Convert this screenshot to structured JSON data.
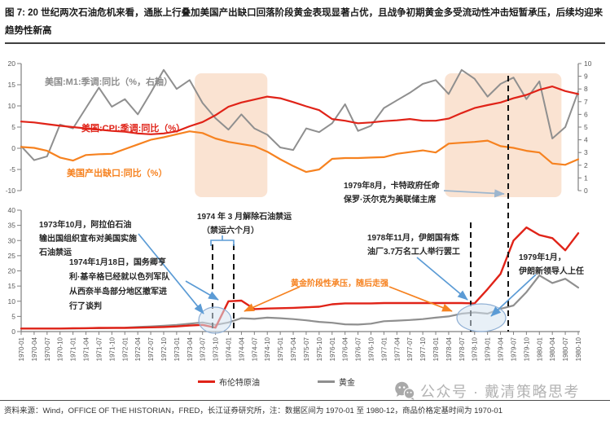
{
  "title": "图 7: 20 世纪两次石油危机来看，通胀上行叠加美国产出缺口回落阶段黄金表现显著占优，且战争初期黄金多受流动性冲击短暂承压，后续均迎来趋势性新高",
  "series_labels": {
    "m1": "美国:M1:季调:同比（%，右轴）",
    "cpi": "美国:CPI:季调:同比（%）",
    "gap": "美国产出缺口:同比（%）"
  },
  "annotations": {
    "embargo_start": {
      "lines": [
        "1973年10月，阿拉伯石油",
        "输出国组织宣布对美国实施",
        "石油禁运"
      ]
    },
    "kissinger": {
      "lines": [
        "1974年1月18日，国务卿亨",
        "利·基辛格已经就以色列军队",
        "从西奈半岛部分地区撤军进",
        "行了谈判"
      ]
    },
    "embargo_end": {
      "lines": [
        "1974 年 3 月解除石油禁运",
        "（禁运六个月）"
      ]
    },
    "gold_pressure": {
      "lines": [
        "黄金阶段性承压，随后走强"
      ]
    },
    "iran_strike": {
      "lines": [
        "1978年11月，伊朗国有炼",
        "油厂3.7万名工人举行罢工"
      ]
    },
    "iran_leader": {
      "lines": [
        "1979年1月，",
        "伊朗新领导人上任"
      ]
    },
    "volcker": {
      "lines": [
        "1979年8月，卡特政府任命",
        "保罗·沃尔克为美联储主席"
      ]
    }
  },
  "legend": [
    {
      "label": "布伦特原油",
      "color": "#e02318"
    },
    {
      "label": "黄金",
      "color": "#8f8f8f"
    }
  ],
  "watermark": {
    "icon": "wechat-icon",
    "text": "公众号 · 戴清策略思考"
  },
  "footer": {
    "text": "资料来源：Wind，OFFICE OF THE HISTORIAN，FRED，长江证券研究所，注：数据区间为 1970-01 至 1980-12，商品价格定基时间为 1970-01"
  },
  "colors": {
    "red": "#e02318",
    "orange": "#f68220",
    "gray": "#8f8f8f",
    "highlight": "#fae3d2",
    "blue_arrow": "#5b9bd5",
    "gray_arrow": "#9db6ce",
    "dashed": "#141414",
    "ellipse_fill": "#d6e4f0",
    "ellipse_stroke": "#8fafd4",
    "axis": "#595959",
    "spine": "#7f7f7f"
  },
  "chart_data": [
    {
      "type": "line",
      "title": "US M1 / CPI / output gap, 1970-1980",
      "x": [
        "1970-01",
        "1970-04",
        "1970-07",
        "1970-10",
        "1971-01",
        "1971-04",
        "1971-07",
        "1971-10",
        "1972-01",
        "1972-04",
        "1972-07",
        "1972-10",
        "1973-01",
        "1973-04",
        "1973-07",
        "1973-10",
        "1974-01",
        "1974-04",
        "1974-07",
        "1974-10",
        "1975-01",
        "1975-04",
        "1975-07",
        "1975-10",
        "1976-01",
        "1976-04",
        "1976-07",
        "1976-10",
        "1977-01",
        "1977-04",
        "1977-07",
        "1977-10",
        "1978-01",
        "1978-04",
        "1978-07",
        "1978-10",
        "1979-01",
        "1979-04",
        "1979-07",
        "1979-10",
        "1980-01",
        "1980-04",
        "1980-07",
        "1980-10"
      ],
      "left_ticks": [
        20,
        15,
        10,
        5,
        0,
        -5,
        -10
      ],
      "right_ticks": [
        10,
        9,
        8,
        7,
        6,
        5,
        4,
        3,
        2,
        1,
        0
      ],
      "left_range": [
        -10,
        20
      ],
      "right_range": [
        0,
        10
      ],
      "grid": false,
      "highlight_regions": [
        [
          13.4,
          19.0
        ],
        [
          32.7,
          41.7
        ]
      ],
      "series": [
        {
          "name": "美国:M1:季调:同比（%，右轴）",
          "axis": "right",
          "color": "#8f8f8f",
          "values": [
            3.5,
            2.4,
            2.7,
            5.2,
            4.9,
            6.5,
            8.1,
            6.6,
            7.2,
            6.0,
            7.7,
            9.5,
            8.0,
            8.7,
            6.9,
            5.7,
            4.8,
            6.0,
            4.9,
            4.4,
            3.4,
            3.2,
            4.9,
            4.6,
            5.3,
            6.8,
            4.7,
            5.1,
            6.5,
            7.1,
            7.7,
            8.4,
            8.7,
            7.6,
            9.5,
            8.8,
            7.4,
            8.4,
            8.9,
            7.2,
            8.6,
            4.1,
            5.0,
            7.8
          ]
        },
        {
          "name": "美国:CPI:季调:同比（%）",
          "axis": "left",
          "color": "#e02318",
          "values": [
            6.3,
            6.1,
            5.7,
            5.3,
            5.0,
            4.7,
            4.4,
            4.1,
            3.9,
            3.5,
            3.3,
            3.5,
            4.0,
            5.2,
            6.2,
            7.8,
            9.8,
            10.8,
            11.5,
            12.2,
            11.8,
            10.9,
            9.9,
            9.0,
            6.9,
            6.5,
            5.9,
            6.1,
            6.4,
            6.6,
            6.9,
            6.5,
            6.5,
            7.0,
            8.3,
            9.5,
            10.2,
            10.8,
            11.8,
            12.6,
            13.8,
            14.6,
            13.5,
            12.8
          ]
        },
        {
          "name": "美国产出缺口:同比（%）",
          "axis": "left",
          "color": "#f68220",
          "values": [
            0.3,
            0.1,
            -0.6,
            -2.2,
            -2.9,
            -1.6,
            -1.4,
            -1.3,
            -0.2,
            0.9,
            2.0,
            2.6,
            3.3,
            4.0,
            3.6,
            2.3,
            1.5,
            1.0,
            0.5,
            -0.8,
            -2.6,
            -4.2,
            -5.6,
            -5.0,
            -2.5,
            -2.3,
            -2.3,
            -2.2,
            -2.1,
            -1.3,
            -0.9,
            -0.5,
            -1.0,
            1.1,
            1.3,
            1.5,
            1.8,
            0.5,
            0.1,
            -0.6,
            -1.0,
            -3.6,
            -3.9,
            -2.6
          ]
        }
      ],
      "events": [
        "1979-08 卡特政府任命保罗·沃尔克为美联储主席"
      ]
    },
    {
      "type": "line",
      "title": "布伦特原油 vs 黄金 (定基指数, 1970-01=1)",
      "x": [
        "1970-01",
        "1970-04",
        "1970-07",
        "1970-10",
        "1971-01",
        "1971-04",
        "1971-07",
        "1971-10",
        "1972-01",
        "1972-04",
        "1972-07",
        "1972-10",
        "1973-01",
        "1973-04",
        "1973-07",
        "1973-10",
        "1974-01",
        "1974-04",
        "1974-07",
        "1974-10",
        "1975-01",
        "1975-04",
        "1975-07",
        "1975-10",
        "1976-01",
        "1976-04",
        "1976-07",
        "1976-10",
        "1977-01",
        "1977-04",
        "1977-07",
        "1977-10",
        "1978-01",
        "1978-04",
        "1978-07",
        "1978-10",
        "1979-01",
        "1979-04",
        "1979-07",
        "1979-10",
        "1980-01",
        "1980-04",
        "1980-07",
        "1980-10"
      ],
      "left_ticks": [
        40,
        35,
        30,
        25,
        20,
        15,
        10,
        5,
        0
      ],
      "left_range": [
        0,
        40
      ],
      "grid": false,
      "series": [
        {
          "name": "布伦特原油",
          "axis": "left",
          "color": "#e02318",
          "values": [
            1.0,
            1.0,
            1.0,
            1.0,
            1.1,
            1.1,
            1.2,
            1.2,
            1.2,
            1.3,
            1.4,
            1.5,
            1.7,
            2.0,
            2.2,
            1.3,
            10.0,
            10.2,
            7.4,
            7.6,
            7.7,
            7.8,
            8.0,
            8.2,
            9.0,
            9.3,
            9.3,
            9.3,
            9.4,
            9.4,
            9.4,
            9.4,
            9.4,
            9.4,
            9.4,
            9.3,
            14.0,
            19.0,
            30.0,
            34.3,
            31.8,
            30.8,
            26.8,
            32.4
          ]
        },
        {
          "name": "黄金",
          "axis": "left",
          "color": "#8f8f8f",
          "values": [
            1.0,
            1.0,
            1.0,
            1.0,
            1.0,
            1.1,
            1.1,
            1.2,
            1.3,
            1.5,
            1.7,
            1.9,
            2.2,
            2.6,
            3.0,
            2.2,
            3.0,
            4.4,
            4.2,
            4.6,
            4.4,
            4.1,
            3.7,
            3.2,
            2.9,
            2.4,
            2.3,
            2.6,
            3.4,
            3.6,
            3.8,
            4.1,
            4.6,
            5.0,
            5.9,
            6.3,
            5.9,
            7.5,
            8.6,
            13.0,
            18.5,
            16.0,
            17.4,
            14.5
          ]
        }
      ],
      "events": [
        "1973-10 石油禁运开始",
        "1974-03 解除石油禁运",
        "1978-11 伊朗炼油厂罢工",
        "1979-08"
      ]
    }
  ]
}
